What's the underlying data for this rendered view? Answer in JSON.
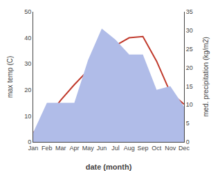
{
  "chart_data": {
    "type": "line",
    "categories": [
      "Jan",
      "Feb",
      "Mar",
      "Apr",
      "May",
      "Jun",
      "Jul",
      "Aug",
      "Sep",
      "Oct",
      "Nov",
      "Dec"
    ],
    "series": [
      {
        "type": "area",
        "axis": "y2",
        "color": "#b0bce8",
        "values": [
          2.5,
          10.5,
          10.5,
          10.5,
          22.0,
          30.5,
          27.5,
          23.5,
          23.5,
          14.0,
          15.0,
          9.5
        ]
      },
      {
        "type": "line",
        "axis": "y",
        "color": "#c0392b",
        "values": [
          3.5,
          9.0,
          16.0,
          22.0,
          27.5,
          34.5,
          37.0,
          40.0,
          40.5,
          31.0,
          19.0,
          14.5
        ]
      }
    ],
    "xlabel": "date (month)",
    "ylabel": "max temp (C)",
    "y2label": "med. precipitation (kg/m2)",
    "ylim": [
      0,
      50
    ],
    "yticks": [
      0,
      10,
      20,
      30,
      40,
      50
    ],
    "y2lim": [
      0,
      35
    ],
    "y2ticks": [
      0,
      5,
      10,
      15,
      20,
      25,
      30,
      35
    ],
    "grid": false
  }
}
